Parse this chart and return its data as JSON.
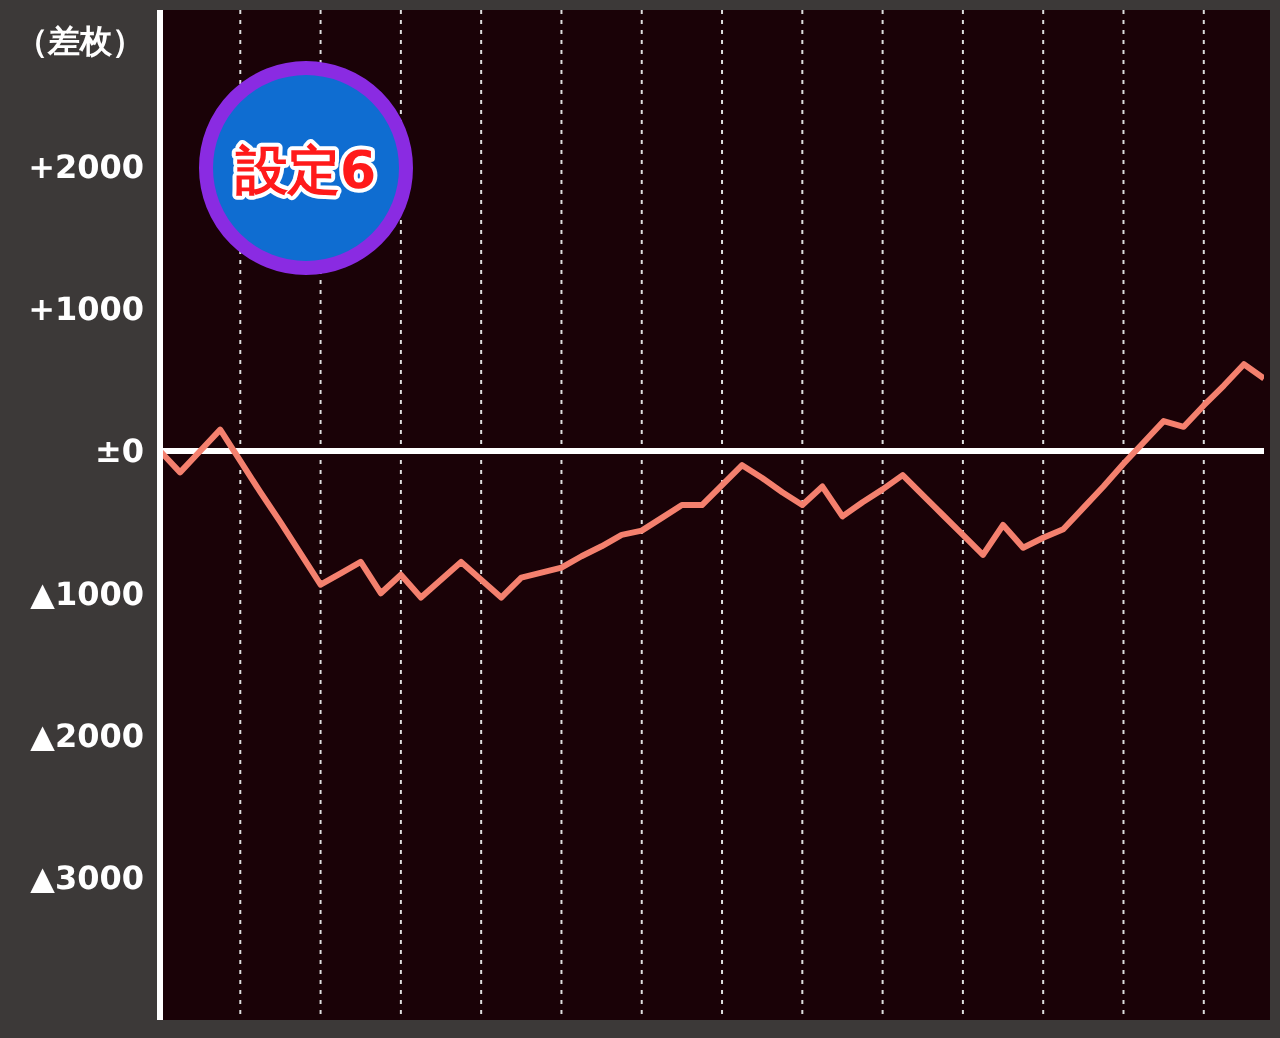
{
  "chart_data": {
    "type": "line",
    "title": "設定6",
    "ylabel": "（差枚）",
    "categories": [
      null,
      null,
      null,
      null,
      null,
      null,
      null,
      null,
      null,
      null,
      null,
      null,
      null,
      null,
      null,
      null,
      null,
      null,
      null,
      null,
      null,
      null,
      null,
      null,
      null,
      null,
      null,
      null,
      null,
      null,
      null,
      null,
      null,
      null,
      null,
      null,
      null,
      null,
      null,
      null,
      null,
      null,
      null,
      null,
      null,
      null,
      null,
      null,
      null,
      null,
      null,
      null,
      null,
      null,
      null,
      null
    ],
    "series": [
      {
        "color": "#f4806e",
        "values": [
          0,
          -150,
          0,
          150,
          -70,
          -290,
          -500,
          -720,
          -940,
          -860,
          -780,
          -1000,
          -870,
          -1030,
          -905,
          -780,
          -905,
          -1030,
          -890,
          -855,
          -820,
          -740,
          -670,
          -590,
          -560,
          -470,
          -380,
          -380,
          -240,
          -100,
          -190,
          -290,
          -380,
          -250,
          -460,
          -360,
          -270,
          -170,
          -310,
          -450,
          -590,
          -730,
          -520,
          -680,
          -610,
          -550,
          -400,
          -250,
          -90,
          60,
          210,
          170,
          320,
          460,
          610,
          510
        ]
      }
    ],
    "ylim": [
      -4000,
      3100
    ],
    "yticks": [
      {
        "value": 2000,
        "label": "+2000"
      },
      {
        "value": 1000,
        "label": "+1000"
      },
      {
        "value": 0,
        "label": "±0"
      },
      {
        "value": -1000,
        "label": "▲1000"
      },
      {
        "value": -2000,
        "label": "▲2000"
      },
      {
        "value": -3000,
        "label": "▲3000"
      }
    ],
    "ref_lines": [
      {
        "axis": "y",
        "value": 0,
        "label": null,
        "color": "#ffffff"
      }
    ],
    "grid": "x",
    "tick_labels": "y",
    "marker": "none",
    "line_style": "solid"
  }
}
